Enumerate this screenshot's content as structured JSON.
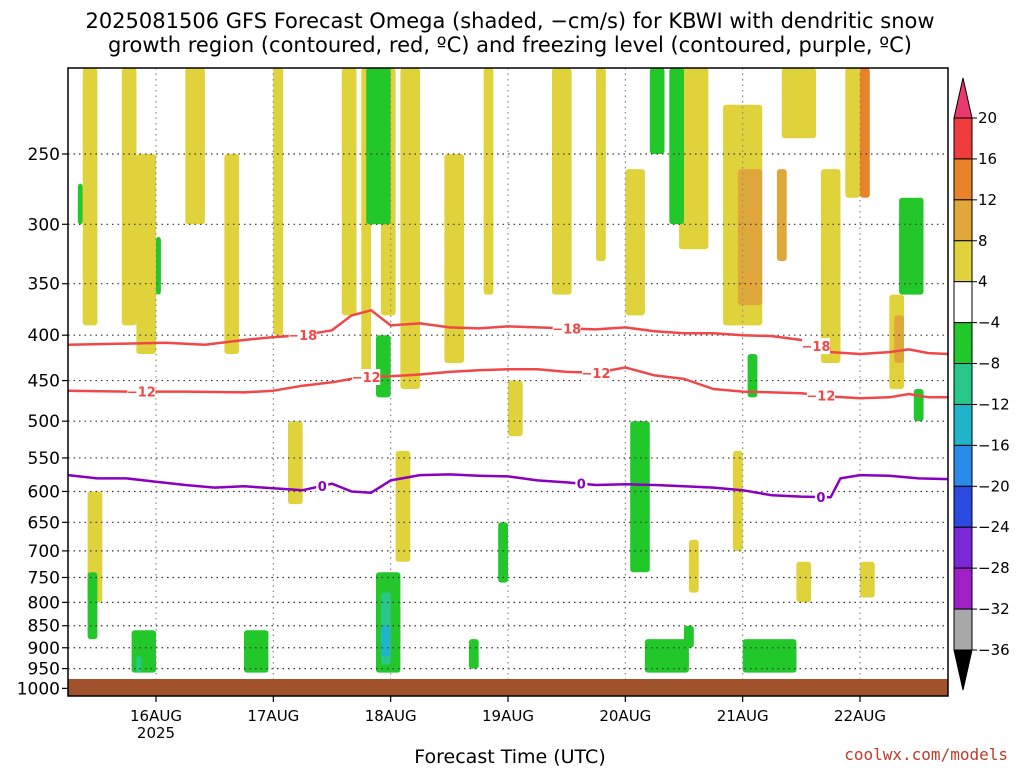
{
  "title": {
    "line1": "2025081506 GFS Forecast Omega (shaded, −cm/s) for KBWI with dendritic snow",
    "line2": "growth region (contoured, red, ºC) and freezing level (contoured, purple, ºC)"
  },
  "x_axis_label": "Forecast Time (UTC)",
  "credit": "coolwx.com/models",
  "chart_data": {
    "type": "heatmap",
    "title": "2025081506 GFS Forecast Omega (shaded, −cm/s) for KBWI with dendritic snow growth region (contoured, red, ºC) and freezing level (contoured, purple, ºC)",
    "xlabel": "Forecast Time (UTC)",
    "ylabel": "",
    "x_range_hours": [
      0,
      180
    ],
    "y_range_hPa": [
      200,
      1020
    ],
    "y_scale": "log-pressure",
    "grid": true,
    "x_ticks": [
      {
        "hours": 18,
        "label": "16AUG",
        "sublabel": "2025"
      },
      {
        "hours": 42,
        "label": "17AUG",
        "sublabel": ""
      },
      {
        "hours": 66,
        "label": "18AUG",
        "sublabel": ""
      },
      {
        "hours": 90,
        "label": "19AUG",
        "sublabel": ""
      },
      {
        "hours": 114,
        "label": "20AUG",
        "sublabel": ""
      },
      {
        "hours": 138,
        "label": "21AUG",
        "sublabel": ""
      },
      {
        "hours": 162,
        "label": "22AUG",
        "sublabel": ""
      }
    ],
    "y_ticks": [
      250,
      300,
      350,
      400,
      450,
      500,
      550,
      600,
      650,
      700,
      750,
      800,
      850,
      900,
      950,
      1000
    ],
    "colorbar": {
      "levels": [
        "20",
        "16",
        "12",
        "8",
        "4",
        "−4",
        "−8",
        "−12",
        "−16",
        "−20",
        "−24",
        "−28",
        "−32",
        "−36"
      ],
      "colors": [
        "#e8386c",
        "#f03c3c",
        "#e8832a",
        "#e0a83a",
        "#e0d23a",
        "#ffffff",
        "#22c72a",
        "#28c88a",
        "#20b4c8",
        "#2a8ae8",
        "#2a4ae0",
        "#7a28d8",
        "#a020c8",
        "#a8a8a8",
        "#000000"
      ]
    },
    "series": [
      {
        "name": "-18",
        "color": "#f04848",
        "points": [
          [
            0,
            410
          ],
          [
            10,
            409
          ],
          [
            20,
            408
          ],
          [
            28,
            410
          ],
          [
            36,
            405
          ],
          [
            42,
            402
          ],
          [
            48,
            400
          ],
          [
            54,
            395
          ],
          [
            58,
            380
          ],
          [
            62,
            375
          ],
          [
            66,
            390
          ],
          [
            72,
            388
          ],
          [
            78,
            392
          ],
          [
            84,
            393
          ],
          [
            90,
            391
          ],
          [
            96,
            392
          ],
          [
            102,
            393
          ],
          [
            108,
            394
          ],
          [
            114,
            392
          ],
          [
            120,
            396
          ],
          [
            126,
            398
          ],
          [
            132,
            398
          ],
          [
            138,
            400
          ],
          [
            144,
            401
          ],
          [
            150,
            405
          ],
          [
            156,
            418
          ],
          [
            162,
            420
          ],
          [
            168,
            418
          ],
          [
            172,
            415
          ],
          [
            176,
            419
          ],
          [
            180,
            420
          ]
        ],
        "labels": [
          {
            "hours": 48,
            "text": "−18"
          },
          {
            "hours": 102,
            "text": "−18"
          },
          {
            "hours": 153,
            "text": "−18"
          }
        ]
      },
      {
        "name": "-12",
        "color": "#f04848",
        "points": [
          [
            0,
            462
          ],
          [
            12,
            463
          ],
          [
            24,
            463
          ],
          [
            36,
            464
          ],
          [
            42,
            462
          ],
          [
            48,
            456
          ],
          [
            54,
            452
          ],
          [
            60,
            446
          ],
          [
            66,
            445
          ],
          [
            72,
            443
          ],
          [
            78,
            440
          ],
          [
            84,
            438
          ],
          [
            90,
            437
          ],
          [
            96,
            437
          ],
          [
            102,
            440
          ],
          [
            108,
            441
          ],
          [
            114,
            435
          ],
          [
            120,
            444
          ],
          [
            126,
            448
          ],
          [
            132,
            460
          ],
          [
            138,
            463
          ],
          [
            144,
            464
          ],
          [
            150,
            465
          ],
          [
            156,
            469
          ],
          [
            162,
            471
          ],
          [
            168,
            470
          ],
          [
            172,
            466
          ],
          [
            176,
            470
          ],
          [
            180,
            470
          ]
        ],
        "labels": [
          {
            "hours": 15,
            "text": "−12"
          },
          {
            "hours": 61,
            "text": "−12"
          },
          {
            "hours": 108,
            "text": "−12"
          },
          {
            "hours": 154,
            "text": "−12"
          }
        ]
      },
      {
        "name": "0",
        "color": "#8a00c0",
        "points": [
          [
            0,
            575
          ],
          [
            6,
            580
          ],
          [
            12,
            580
          ],
          [
            18,
            585
          ],
          [
            24,
            590
          ],
          [
            30,
            594
          ],
          [
            36,
            592
          ],
          [
            42,
            595
          ],
          [
            48,
            598
          ],
          [
            54,
            588
          ],
          [
            58,
            600
          ],
          [
            62,
            602
          ],
          [
            66,
            583
          ],
          [
            72,
            575
          ],
          [
            78,
            574
          ],
          [
            84,
            576
          ],
          [
            90,
            577
          ],
          [
            96,
            583
          ],
          [
            102,
            586
          ],
          [
            108,
            590
          ],
          [
            114,
            589
          ],
          [
            120,
            590
          ],
          [
            126,
            592
          ],
          [
            132,
            594
          ],
          [
            138,
            598
          ],
          [
            144,
            606
          ],
          [
            150,
            608
          ],
          [
            156,
            609
          ],
          [
            158,
            580
          ],
          [
            162,
            575
          ],
          [
            168,
            576
          ],
          [
            174,
            580
          ],
          [
            180,
            581
          ]
        ],
        "labels": [
          {
            "hours": 52,
            "text": "0"
          },
          {
            "hours": 105,
            "text": "0"
          },
          {
            "hours": 154,
            "text": "0"
          }
        ]
      }
    ],
    "omega_shading": [
      {
        "t0": 3,
        "t1": 6,
        "p0": 200,
        "p1": 390,
        "value": 4
      },
      {
        "t0": 4,
        "t1": 7,
        "p0": 600,
        "p1": 800,
        "value": 4
      },
      {
        "t0": 11,
        "t1": 14,
        "p0": 200,
        "p1": 390,
        "value": 4
      },
      {
        "t0": 14,
        "t1": 18,
        "p0": 250,
        "p1": 420,
        "value": 4
      },
      {
        "t0": 24,
        "t1": 28,
        "p0": 200,
        "p1": 300,
        "value": 4
      },
      {
        "t0": 32,
        "t1": 35,
        "p0": 250,
        "p1": 420,
        "value": 4
      },
      {
        "t0": 42,
        "t1": 44,
        "p0": 200,
        "p1": 400,
        "value": 4
      },
      {
        "t0": 45,
        "t1": 48,
        "p0": 500,
        "p1": 620,
        "value": 4
      },
      {
        "t0": 56,
        "t1": 59,
        "p0": 200,
        "p1": 380,
        "value": 4
      },
      {
        "t0": 60,
        "t1": 62,
        "p0": 200,
        "p1": 450,
        "value": 4
      },
      {
        "t0": 64,
        "t1": 67,
        "p0": 200,
        "p1": 380,
        "value": 4
      },
      {
        "t0": 67,
        "t1": 70,
        "p0": 540,
        "p1": 720,
        "value": 4
      },
      {
        "t0": 68,
        "t1": 72,
        "p0": 200,
        "p1": 460,
        "value": 4
      },
      {
        "t0": 77,
        "t1": 81,
        "p0": 250,
        "p1": 430,
        "value": 4
      },
      {
        "t0": 85,
        "t1": 87,
        "p0": 200,
        "p1": 360,
        "value": 4
      },
      {
        "t0": 90,
        "t1": 93,
        "p0": 450,
        "p1": 520,
        "value": 4
      },
      {
        "t0": 99,
        "t1": 103,
        "p0": 200,
        "p1": 360,
        "value": 4
      },
      {
        "t0": 108,
        "t1": 110,
        "p0": 200,
        "p1": 330,
        "value": 4
      },
      {
        "t0": 114,
        "t1": 118,
        "p0": 260,
        "p1": 380,
        "value": 4
      },
      {
        "t0": 125,
        "t1": 131,
        "p0": 200,
        "p1": 320,
        "value": 4
      },
      {
        "t0": 127,
        "t1": 129,
        "p0": 680,
        "p1": 780,
        "value": 4
      },
      {
        "t0": 134,
        "t1": 142,
        "p0": 220,
        "p1": 390,
        "value": 4
      },
      {
        "t0": 136,
        "t1": 138,
        "p0": 540,
        "p1": 700,
        "value": 4
      },
      {
        "t0": 146,
        "t1": 153,
        "p0": 200,
        "p1": 240,
        "value": 4
      },
      {
        "t0": 149,
        "t1": 152,
        "p0": 720,
        "p1": 800,
        "value": 4
      },
      {
        "t0": 154,
        "t1": 158,
        "p0": 260,
        "p1": 430,
        "value": 4
      },
      {
        "t0": 159,
        "t1": 162,
        "p0": 200,
        "p1": 280,
        "value": 4
      },
      {
        "t0": 162,
        "t1": 165,
        "p0": 720,
        "p1": 790,
        "value": 4
      },
      {
        "t0": 168,
        "t1": 171,
        "p0": 360,
        "p1": 460,
        "value": 4
      },
      {
        "t0": 137,
        "t1": 142,
        "p0": 260,
        "p1": 370,
        "value": 8
      },
      {
        "t0": 145,
        "t1": 147,
        "p0": 260,
        "p1": 330,
        "value": 8
      },
      {
        "t0": 162,
        "t1": 164,
        "p0": 200,
        "p1": 280,
        "value": 12
      },
      {
        "t0": 169,
        "t1": 171,
        "p0": 380,
        "p1": 430,
        "value": 8
      },
      {
        "t0": 65,
        "t1": 68,
        "p0": 800,
        "p1": 900,
        "value": 8
      },
      {
        "t0": 2,
        "t1": 3,
        "p0": 270,
        "p1": 300,
        "value": -4
      },
      {
        "t0": 18,
        "t1": 19,
        "p0": 310,
        "p1": 360,
        "value": -4
      },
      {
        "t0": 4,
        "t1": 6,
        "p0": 740,
        "p1": 880,
        "value": -4
      },
      {
        "t0": 13,
        "t1": 18,
        "p0": 860,
        "p1": 960,
        "value": -4
      },
      {
        "t0": 36,
        "t1": 41,
        "p0": 860,
        "p1": 960,
        "value": -4
      },
      {
        "t0": 61,
        "t1": 66,
        "p0": 200,
        "p1": 300,
        "value": -4
      },
      {
        "t0": 63,
        "t1": 66,
        "p0": 400,
        "p1": 470,
        "value": -4
      },
      {
        "t0": 63,
        "t1": 68,
        "p0": 740,
        "p1": 960,
        "value": -4
      },
      {
        "t0": 82,
        "t1": 84,
        "p0": 880,
        "p1": 950,
        "value": -4
      },
      {
        "t0": 88,
        "t1": 90,
        "p0": 650,
        "p1": 760,
        "value": -4
      },
      {
        "t0": 115,
        "t1": 119,
        "p0": 500,
        "p1": 740,
        "value": -4
      },
      {
        "t0": 119,
        "t1": 122,
        "p0": 200,
        "p1": 250,
        "value": -4
      },
      {
        "t0": 123,
        "t1": 126,
        "p0": 200,
        "p1": 300,
        "value": -4
      },
      {
        "t0": 118,
        "t1": 127,
        "p0": 880,
        "p1": 960,
        "value": -4
      },
      {
        "t0": 126,
        "t1": 128,
        "p0": 850,
        "p1": 900,
        "value": -4
      },
      {
        "t0": 138,
        "t1": 149,
        "p0": 880,
        "p1": 960,
        "value": -4
      },
      {
        "t0": 139,
        "t1": 141,
        "p0": 420,
        "p1": 470,
        "value": -4
      },
      {
        "t0": 170,
        "t1": 175,
        "p0": 280,
        "p1": 360,
        "value": -4
      },
      {
        "t0": 173,
        "t1": 175,
        "p0": 460,
        "p1": 500,
        "value": -4
      },
      {
        "t0": 64,
        "t1": 66,
        "p0": 780,
        "p1": 940,
        "value": -8
      },
      {
        "t0": 14,
        "t1": 15,
        "p0": 920,
        "p1": 960,
        "value": -8
      },
      {
        "t0": 64,
        "t1": 66,
        "p0": 850,
        "p1": 920,
        "value": -12
      }
    ]
  }
}
